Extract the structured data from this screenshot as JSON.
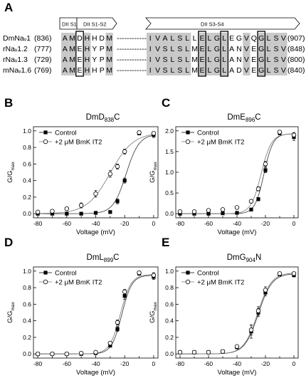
{
  "alignment": {
    "panel_label": "A",
    "domains": [
      "DII S1",
      "DII S1-S2",
      "DII S3-S4"
    ],
    "separator": "------------",
    "rows": [
      {
        "name": "DmNaᵥ1",
        "start": "(836)",
        "left": "AMDHHDM",
        "right": "IVALSLLELGLEGVQGLSV",
        "end": "(907)"
      },
      {
        "name": "rNaᵥ1.2",
        "start": "(777)",
        "left": "AMEHYPM",
        "right": "IVSLSLMELGLANVEGLSV",
        "end": "(848)"
      },
      {
        "name": "rNaᵥ1.3",
        "start": "(729)",
        "left": "AMEHYPM",
        "right": "IVSLSLMELGLANVEGLSV",
        "end": "(800)"
      },
      {
        "name": "mNaᵥ1.6",
        "start": "(769)",
        "left": "AMEHHPM",
        "right": "IVSLSLMELGLADVEGLSV",
        "end": "(840)"
      }
    ]
  },
  "colors": {
    "shade": "#c8c8c8",
    "control": "#000000",
    "bmk": "#ffffff"
  },
  "chart_data": [
    {
      "panel": "B",
      "type": "scatter",
      "title_main": "DmD",
      "title_sub": "838",
      "title_tail": "C",
      "xlabel": "Voltage (mV)",
      "ylabel": "G/G",
      "ylabel_sub": "max",
      "xlim": [
        -80,
        0
      ],
      "ylim": [
        0,
        1.0
      ],
      "xticks": [
        -80,
        -70,
        -60,
        -50,
        -40,
        -30,
        -20,
        -10,
        0
      ],
      "yticks": [
        0.0,
        0.2,
        0.4,
        0.6,
        0.8,
        1.0
      ],
      "ytick_labels": [
        "0.0",
        "0.2",
        "0.4",
        "0.6",
        "0.8",
        "1.0"
      ],
      "xtick_labels": [
        "-80",
        "",
        "-60",
        "",
        "-40",
        "",
        "-20",
        "",
        "0"
      ],
      "legend": [
        "Control",
        "+2 μM BmK IT2"
      ],
      "series": [
        {
          "name": "Control",
          "marker": "filled-square",
          "x": [
            -80,
            -70,
            -60,
            -50,
            -40,
            -30,
            -25,
            -20,
            -10,
            0
          ],
          "y": [
            0.0,
            0.0,
            0.0,
            0.0,
            0.01,
            0.02,
            0.15,
            0.4,
            0.97,
            0.95
          ],
          "err": [
            0,
            0,
            0,
            0,
            0,
            0.01,
            0.03,
            0.03,
            0.02,
            0.03
          ],
          "fit_v50": -19,
          "fit_k": 4.5,
          "fit_max": 0.96
        },
        {
          "name": "+2 μM BmK IT2",
          "marker": "open-circle",
          "x": [
            -80,
            -70,
            -60,
            -50,
            -40,
            -30,
            -25,
            -20,
            -10,
            0
          ],
          "y": [
            0.02,
            0.03,
            0.06,
            0.1,
            0.24,
            0.48,
            0.57,
            0.75,
            0.98,
            0.97
          ],
          "err": [
            0,
            0.01,
            0.02,
            0.03,
            0.04,
            0.04,
            0.03,
            0.03,
            0.02,
            0.02
          ],
          "fit_v50": -30,
          "fit_k": 8,
          "fit_max": 0.98
        }
      ]
    },
    {
      "panel": "C",
      "type": "scatter",
      "title_main": "DmE",
      "title_sub": "896",
      "title_tail": "C",
      "xlabel": "Voltage (mV)",
      "ylabel": "G/G",
      "ylabel_sub": "max",
      "xlim": [
        -80,
        0
      ],
      "ylim": [
        0,
        2.0
      ],
      "xticks": [
        -80,
        -70,
        -60,
        -50,
        -40,
        -30,
        -20,
        -10,
        0
      ],
      "yticks": [
        0.0,
        0.5,
        1.0,
        1.5,
        2.0
      ],
      "ytick_labels": [
        "0.0",
        "0.5",
        "1.0",
        "1.5",
        "2.0"
      ],
      "xtick_labels": [
        "-80",
        "",
        "-60",
        "",
        "-40",
        "",
        "-20",
        "",
        "0"
      ],
      "legend": [
        "Control",
        "+2 μM BmK IT2"
      ],
      "series": [
        {
          "name": "Control",
          "marker": "filled-square",
          "x": [
            -80,
            -70,
            -60,
            -50,
            -40,
            -30,
            -25,
            -20,
            -10,
            0
          ],
          "y": [
            0.0,
            0.0,
            0.0,
            0.01,
            0.02,
            0.1,
            0.35,
            1.05,
            1.95,
            1.85
          ],
          "err": [
            0,
            0,
            0,
            0,
            0,
            0.02,
            0.04,
            0.06,
            0.05,
            0.08
          ],
          "fit_v50": -21,
          "fit_k": 3.2,
          "fit_max": 1.93
        },
        {
          "name": "+2 μM BmK IT2",
          "marker": "open-circle",
          "x": [
            -80,
            -70,
            -60,
            -50,
            -40,
            -30,
            -25,
            -20,
            -10,
            0
          ],
          "y": [
            0.05,
            0.05,
            0.08,
            0.1,
            0.15,
            0.3,
            0.6,
            1.2,
            1.97,
            1.9
          ],
          "err": [
            0,
            0,
            0.01,
            0.02,
            0.02,
            0.04,
            0.05,
            0.06,
            0.04,
            0.06
          ],
          "fit_v50": -23,
          "fit_k": 3.6,
          "fit_max": 1.93
        }
      ]
    },
    {
      "panel": "D",
      "type": "scatter",
      "title_main": "DmL",
      "title_sub": "899",
      "title_tail": "C",
      "xlabel": "Voltage (mV)",
      "ylabel": "G/G",
      "ylabel_sub": "max",
      "xlim": [
        -80,
        0
      ],
      "ylim": [
        0,
        1.0
      ],
      "xticks": [
        -80,
        -70,
        -60,
        -50,
        -40,
        -30,
        -20,
        -10,
        0
      ],
      "yticks": [
        0.0,
        0.2,
        0.4,
        0.6,
        0.8,
        1.0
      ],
      "ytick_labels": [
        "0.0",
        "0.2",
        "0.4",
        "0.6",
        "0.8",
        "1.0"
      ],
      "xtick_labels": [
        "-80",
        "",
        "-60",
        "",
        "-40",
        "",
        "-20",
        "",
        "0"
      ],
      "legend": [
        "Control",
        "+2 μM BmK IT2"
      ],
      "series": [
        {
          "name": "Control",
          "marker": "filled-square",
          "x": [
            -80,
            -70,
            -60,
            -50,
            -40,
            -30,
            -25,
            -20,
            -10,
            0
          ],
          "y": [
            0.0,
            0.0,
            0.0,
            0.0,
            0.01,
            0.1,
            0.3,
            0.7,
            0.97,
            0.93
          ],
          "err": [
            0,
            0,
            0,
            0,
            0,
            0.01,
            0.03,
            0.04,
            0.02,
            0.03
          ],
          "fit_v50": -22,
          "fit_k": 3.5,
          "fit_max": 0.95
        },
        {
          "name": "+2 μM BmK IT2",
          "marker": "open-circle",
          "x": [
            -80,
            -70,
            -60,
            -50,
            -40,
            -30,
            -25,
            -20,
            -10,
            0
          ],
          "y": [
            0.0,
            0.0,
            0.0,
            0.01,
            0.02,
            0.13,
            0.38,
            0.75,
            0.98,
            0.95
          ],
          "err": [
            0,
            0,
            0,
            0,
            0,
            0.02,
            0.03,
            0.03,
            0.02,
            0.03
          ],
          "fit_v50": -23,
          "fit_k": 3.7,
          "fit_max": 0.96
        }
      ]
    },
    {
      "panel": "E",
      "type": "scatter",
      "title_main": "DmG",
      "title_sub": "904",
      "title_tail": "N",
      "xlabel": "Voltage (mV)",
      "ylabel": "G/G",
      "ylabel_sub": "max",
      "xlim": [
        -80,
        0
      ],
      "ylim": [
        0,
        1.0
      ],
      "xticks": [
        -80,
        -70,
        -60,
        -50,
        -40,
        -30,
        -20,
        -10,
        0
      ],
      "yticks": [
        0.0,
        0.2,
        0.4,
        0.6,
        0.8,
        1.0
      ],
      "ytick_labels": [
        "0.0",
        "0.2",
        "0.4",
        "0.6",
        "0.8",
        "1.0"
      ],
      "xtick_labels": [
        "-80",
        "",
        "-60",
        "",
        "-40",
        "",
        "-20",
        "",
        "0"
      ],
      "legend": [
        "Control",
        "+2 μM BmK IT2"
      ],
      "series": [
        {
          "name": "Control",
          "marker": "filled-square",
          "x": [
            -80,
            -70,
            -60,
            -50,
            -40,
            -30,
            -25,
            -20,
            -10,
            0
          ],
          "y": [
            0.02,
            0.02,
            0.02,
            0.03,
            0.08,
            0.27,
            0.5,
            0.74,
            0.96,
            0.95
          ],
          "err": [
            0,
            0,
            0,
            0,
            0.02,
            0.08,
            0.05,
            0.04,
            0.02,
            0.02
          ],
          "fit_v50": -25,
          "fit_k": 4.8,
          "fit_max": 0.97
        },
        {
          "name": "+2 μM BmK IT2",
          "marker": "open-circle",
          "x": [
            -80,
            -70,
            -60,
            -50,
            -40,
            -30,
            -25,
            -20,
            -10,
            0
          ],
          "y": [
            0.02,
            0.02,
            0.02,
            0.03,
            0.09,
            0.29,
            0.52,
            0.77,
            0.97,
            0.97
          ],
          "err": [
            0,
            0,
            0,
            0,
            0.02,
            0.06,
            0.05,
            0.04,
            0.02,
            0.02
          ],
          "fit_v50": -25.5,
          "fit_k": 4.8,
          "fit_max": 0.98
        }
      ]
    }
  ]
}
